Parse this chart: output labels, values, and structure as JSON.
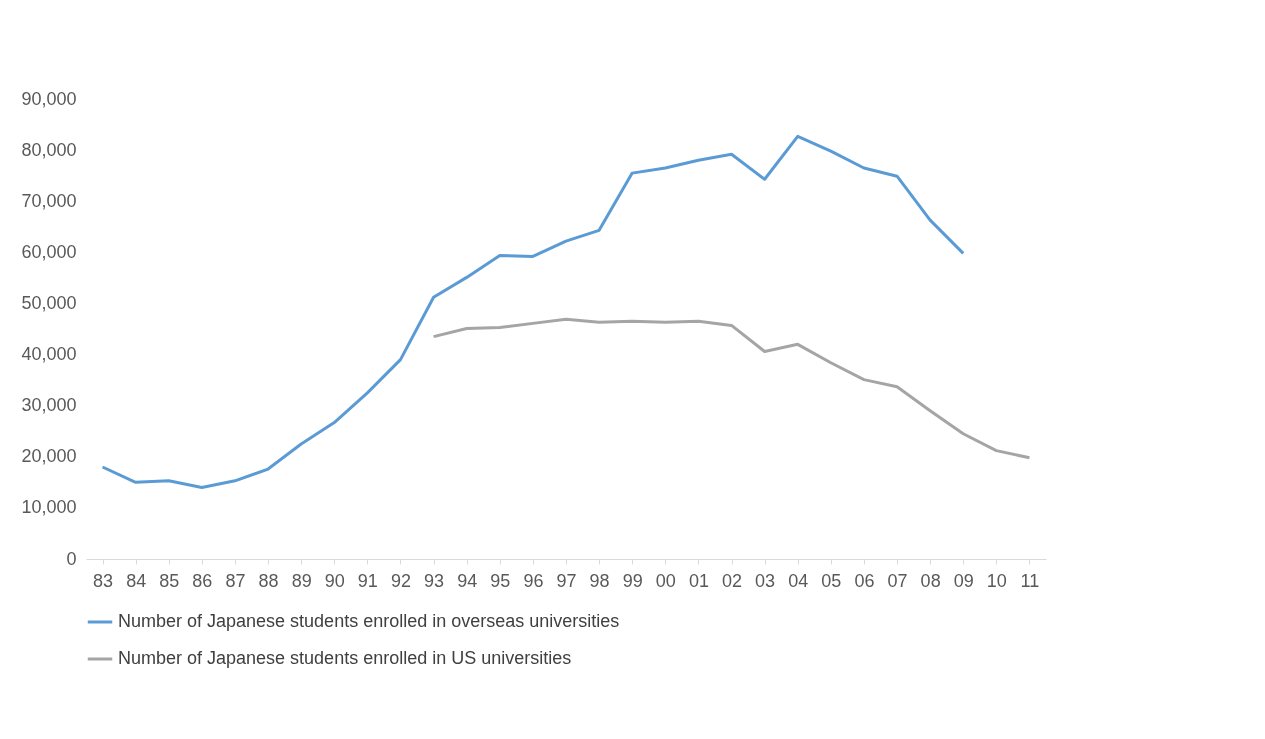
{
  "chart_data": {
    "type": "line",
    "categories": [
      "83",
      "84",
      "85",
      "86",
      "87",
      "88",
      "89",
      "90",
      "91",
      "92",
      "93",
      "94",
      "95",
      "96",
      "97",
      "98",
      "99",
      "00",
      "01",
      "02",
      "03",
      "04",
      "05",
      "06",
      "07",
      "08",
      "09",
      "10",
      "11"
    ],
    "series": [
      {
        "name": "Number of Japanese students enrolled in overseas universities",
        "color": "#5b9bd5",
        "values": [
          18000,
          15000,
          15300,
          14000,
          15300,
          17600,
          22500,
          26700,
          32500,
          39000,
          51200,
          55100,
          59400,
          59200,
          62200,
          64300,
          75500,
          76500,
          78000,
          79200,
          74300,
          82700,
          79800,
          76500,
          74900,
          66300,
          59800,
          null,
          null
        ]
      },
      {
        "name": "Number of Japanese students enrolled in US universities",
        "color": "#a5a5a5",
        "values": [
          null,
          null,
          null,
          null,
          null,
          null,
          null,
          null,
          null,
          null,
          43500,
          45100,
          45300,
          46100,
          46900,
          46300,
          46500,
          46300,
          46500,
          45700,
          40600,
          42000,
          38400,
          35100,
          33700,
          29000,
          24500,
          21200,
          19800
        ]
      }
    ],
    "ylim": [
      0,
      90000
    ],
    "yticks": [
      0,
      {
        "value": 10000,
        "label": "10,000"
      },
      {
        "value": 20000,
        "label": "20,000"
      },
      {
        "value": 30000,
        "label": "30,000"
      },
      {
        "value": 40000,
        "label": "40,000"
      },
      {
        "value": 50000,
        "label": "50,000"
      },
      {
        "value": 60000,
        "label": "60,000"
      },
      {
        "value": 70000,
        "label": "70,000"
      },
      {
        "value": 80000,
        "label": "80,000"
      },
      {
        "value": 90000,
        "label": "90,000"
      }
    ],
    "grid": false,
    "legend": "bottom",
    "marker": "none",
    "line_style": "solid"
  }
}
